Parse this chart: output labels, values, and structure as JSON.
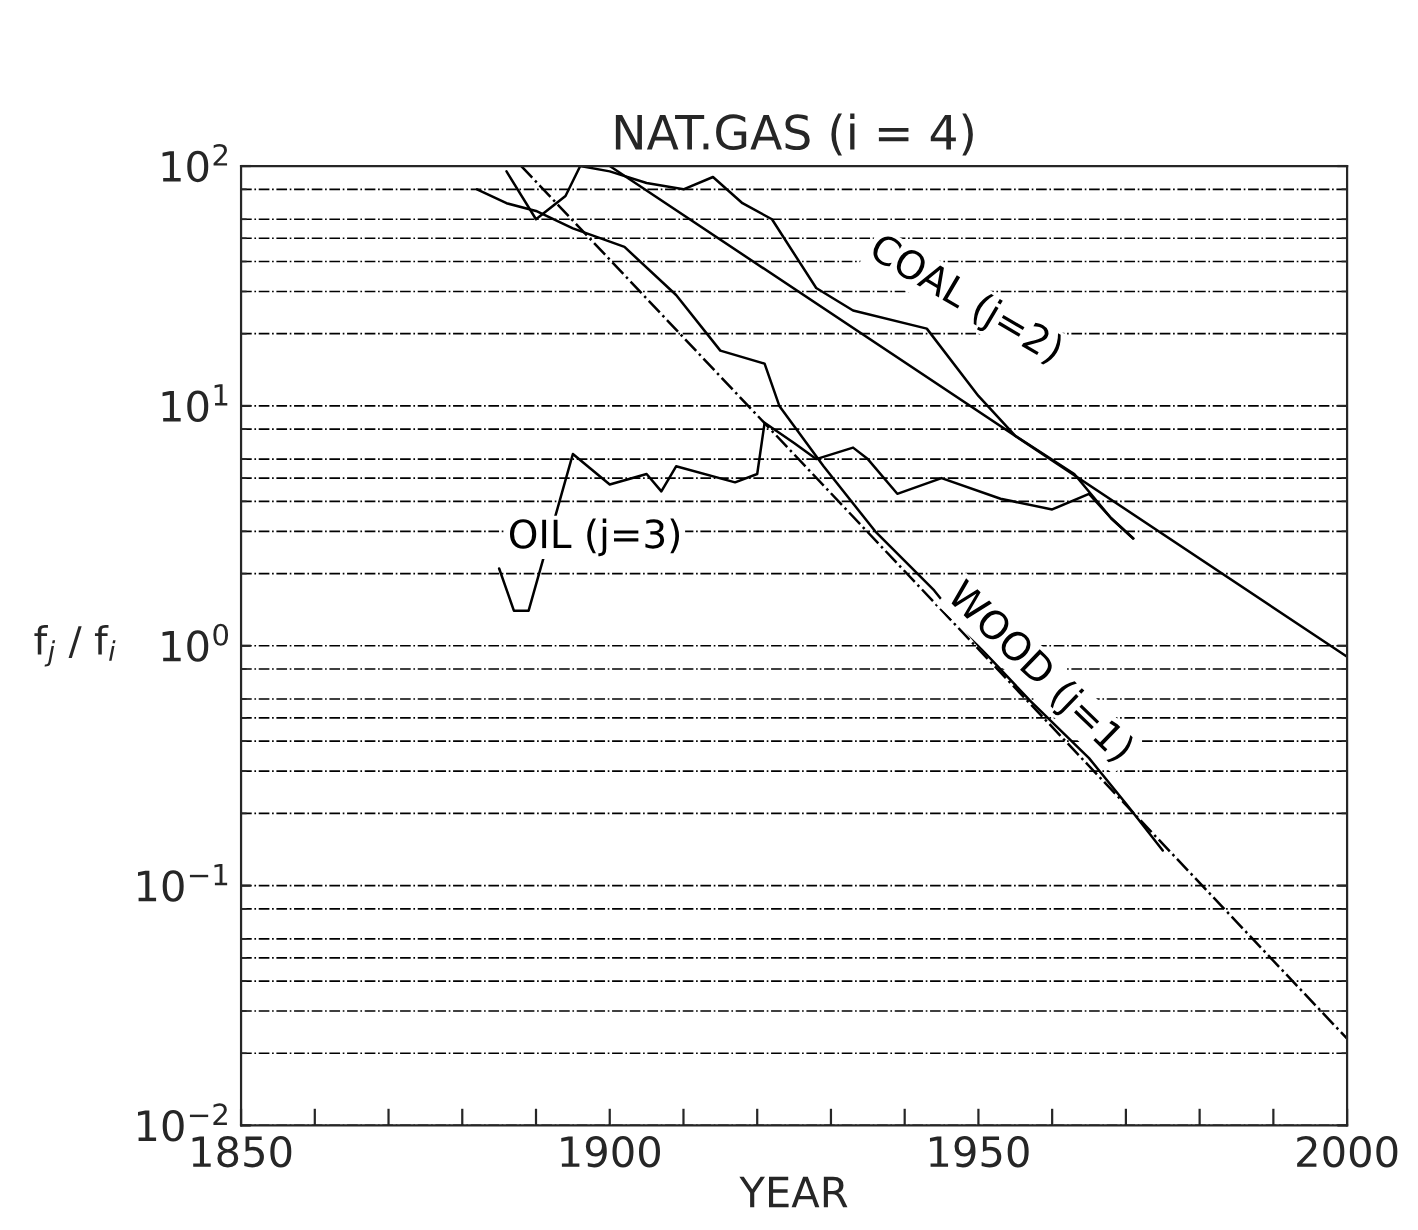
{
  "chart_data": {
    "type": "line",
    "title": "NAT.GAS (i = 4)",
    "xlabel": "YEAR",
    "ylabel": "f$_{j}$ / f$_{i}$",
    "log": "y",
    "grid": "y",
    "legend": false,
    "marker": "none",
    "xlim": [
      1850,
      2000
    ],
    "xticks": [
      {
        "value": 1850,
        "label": "1850"
      },
      {
        "value": 1860,
        "label": null
      },
      {
        "value": 1870,
        "label": null
      },
      {
        "value": 1880,
        "label": null
      },
      {
        "value": 1890,
        "label": null
      },
      {
        "value": 1900,
        "label": "1900"
      },
      {
        "value": 1910,
        "label": null
      },
      {
        "value": 1920,
        "label": null
      },
      {
        "value": 1930,
        "label": null
      },
      {
        "value": 1940,
        "label": null
      },
      {
        "value": 1950,
        "label": "1950"
      },
      {
        "value": 1960,
        "label": null
      },
      {
        "value": 1970,
        "label": null
      },
      {
        "value": 1980,
        "label": null
      },
      {
        "value": 1990,
        "label": null
      },
      {
        "value": 2000,
        "label": "2000"
      }
    ],
    "ylim": [
      0.01,
      100
    ],
    "yticks": [
      {
        "value": 0.01,
        "label": "10$^{−2}$"
      },
      {
        "value": 0.1,
        "label": "10$^{−1}$"
      },
      {
        "value": 1,
        "label": "10$^{0}$"
      },
      {
        "value": 10,
        "label": "10$^{1}$"
      },
      {
        "value": 100,
        "label": "10$^{2}$"
      }
    ],
    "series": [
      {
        "name": "COAL (j=2)",
        "color": "#000000",
        "line_style": "solid",
        "x": [
          1886,
          1890,
          1894,
          1896,
          1900,
          1905,
          1910,
          1914,
          1918,
          1922,
          1928,
          1933,
          1943,
          1950,
          1955,
          1963,
          1968,
          1971
        ],
        "values": [
          95,
          60,
          75,
          100,
          95,
          85,
          80,
          90,
          70,
          60,
          31,
          25,
          21,
          11,
          7.5,
          5.2,
          3.4,
          2.8
        ]
      },
      {
        "color": "#000000",
        "line_style": "solid",
        "x": [
          1900,
          2000
        ],
        "values": [
          100,
          0.9
        ]
      },
      {
        "name": "OIL (j=3)",
        "color": "#000000",
        "line_style": "solid",
        "x": [
          1885,
          1887,
          1889,
          1894,
          1895,
          1900,
          1905,
          1907,
          1909,
          1917,
          1920,
          1921,
          1925,
          1928,
          1933,
          1935,
          1939,
          1945,
          1953,
          1960,
          1965,
          1968,
          1971
        ],
        "values": [
          2.1,
          1.4,
          1.4,
          4.9,
          6.3,
          4.7,
          5.2,
          4.4,
          5.6,
          4.8,
          5.2,
          8.5,
          7,
          6,
          6.7,
          6,
          4.3,
          5,
          4.1,
          3.7,
          4.3,
          3.4,
          2.8
        ]
      },
      {
        "name": "WOOD (j=1)",
        "color": "#000000",
        "line_style": "solid",
        "x": [
          1882,
          1886,
          1890,
          1895,
          1902,
          1909,
          1915,
          1921,
          1923,
          1929,
          1936,
          1944,
          1950,
          1957,
          1965,
          1970,
          1975
        ],
        "values": [
          80,
          70,
          65,
          55,
          46,
          29,
          17,
          15,
          10,
          5.6,
          3,
          1.7,
          1.0,
          0.59,
          0.34,
          0.22,
          0.14
        ]
      },
      {
        "color": "#000000",
        "line_style": "dashed",
        "x": [
          1888,
          2000
        ],
        "values": [
          100,
          0.023
        ]
      }
    ]
  }
}
